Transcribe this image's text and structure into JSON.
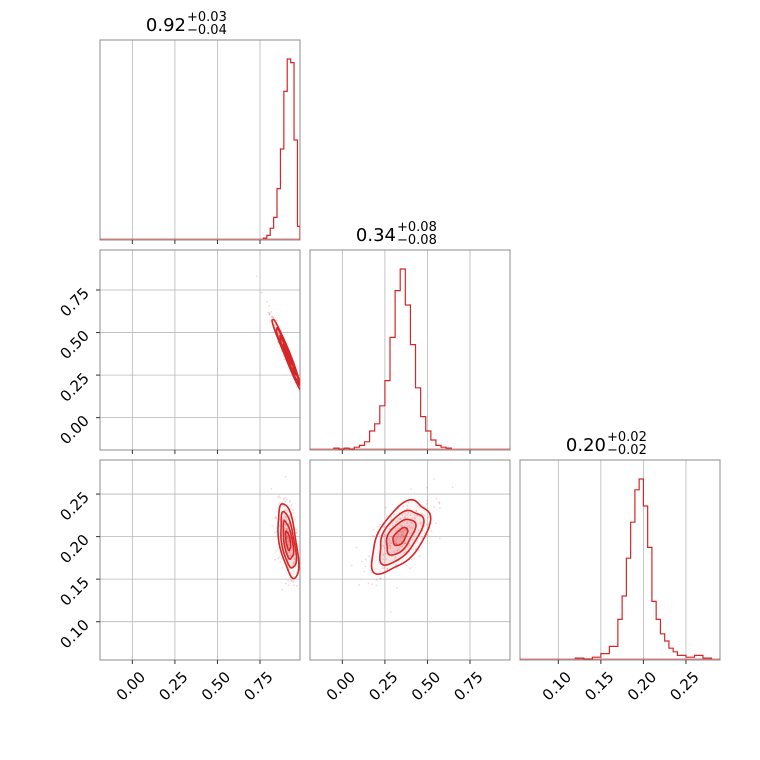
{
  "chart_data": {
    "type": "corner",
    "color": "#d62728",
    "grid": true,
    "parameters": [
      {
        "title_value": "0.92",
        "title_plus": "+0.03",
        "title_minus": "−0.04",
        "range": [
          -0.19,
          0.985
        ],
        "ticks": [
          0.0,
          0.25,
          0.5,
          0.75
        ],
        "tick_labels": [
          "0.00",
          "0.25",
          "0.50",
          "0.75"
        ],
        "median": 0.92,
        "sd": 0.035
      },
      {
        "title_value": "0.34",
        "title_plus": "+0.08",
        "title_minus": "−0.08",
        "range": [
          -0.19,
          0.985
        ],
        "ticks": [
          0.0,
          0.25,
          0.5,
          0.75
        ],
        "tick_labels": [
          "0.00",
          "0.25",
          "0.50",
          "0.75"
        ],
        "median": 0.34,
        "sd": 0.08
      },
      {
        "title_value": "0.20",
        "title_plus": "+0.02",
        "title_minus": "−0.02",
        "range": [
          0.055,
          0.29
        ],
        "ticks": [
          0.1,
          0.15,
          0.2,
          0.25
        ],
        "tick_labels": [
          "0.10",
          "0.15",
          "0.20",
          "0.25"
        ],
        "median": 0.2,
        "sd": 0.02
      }
    ],
    "histograms": [
      {
        "param": 0,
        "bin_edges": [
          0.77,
          0.79,
          0.81,
          0.83,
          0.85,
          0.87,
          0.89,
          0.91,
          0.93,
          0.95,
          0.97,
          0.985
        ],
        "counts": [
          0.005,
          0.02,
          0.06,
          0.12,
          0.28,
          0.5,
          0.82,
          1.0,
          0.98,
          0.55,
          0.07
        ]
      },
      {
        "param": 1,
        "bin_edges": [
          -0.05,
          -0.02,
          0.01,
          0.04,
          0.07,
          0.1,
          0.13,
          0.16,
          0.19,
          0.22,
          0.25,
          0.28,
          0.31,
          0.34,
          0.37,
          0.4,
          0.43,
          0.46,
          0.49,
          0.52,
          0.55,
          0.58,
          0.61,
          0.64
        ],
        "counts": [
          0.005,
          0.0,
          0.005,
          0.0,
          0.01,
          0.02,
          0.04,
          0.1,
          0.14,
          0.24,
          0.38,
          0.62,
          0.88,
          1.0,
          0.8,
          0.58,
          0.34,
          0.18,
          0.1,
          0.05,
          0.02,
          0.01,
          0.005
        ]
      },
      {
        "param": 2,
        "bin_edges": [
          0.12,
          0.13,
          0.14,
          0.15,
          0.16,
          0.17,
          0.175,
          0.18,
          0.185,
          0.19,
          0.195,
          0.2,
          0.205,
          0.21,
          0.215,
          0.22,
          0.225,
          0.23,
          0.235,
          0.24,
          0.25,
          0.26,
          0.27,
          0.28
        ],
        "counts": [
          0.005,
          0.0,
          0.01,
          0.03,
          0.07,
          0.22,
          0.35,
          0.56,
          0.76,
          0.94,
          1.0,
          0.85,
          0.62,
          0.32,
          0.22,
          0.14,
          0.1,
          0.06,
          0.04,
          0.02,
          0.01,
          0.02,
          0.005
        ]
      }
    ],
    "contours_2d": [
      {
        "x_param": 0,
        "y_param": 1,
        "mean": [
          0.91,
          0.37
        ],
        "sd": [
          0.045,
          0.11
        ],
        "corr": -0.98,
        "levels": [
          0.5,
          1.0,
          1.5,
          2.0
        ]
      },
      {
        "x_param": 0,
        "y_param": 2,
        "mean": [
          0.915,
          0.195
        ],
        "sd": [
          0.03,
          0.022
        ],
        "corr": -0.55,
        "levels": [
          0.5,
          1.0,
          1.5,
          2.0
        ]
      },
      {
        "x_param": 1,
        "y_param": 2,
        "mean": [
          0.34,
          0.2
        ],
        "sd": [
          0.085,
          0.021
        ],
        "corr": 0.55,
        "levels": [
          0.5,
          1.0,
          1.5,
          2.0
        ]
      }
    ]
  }
}
